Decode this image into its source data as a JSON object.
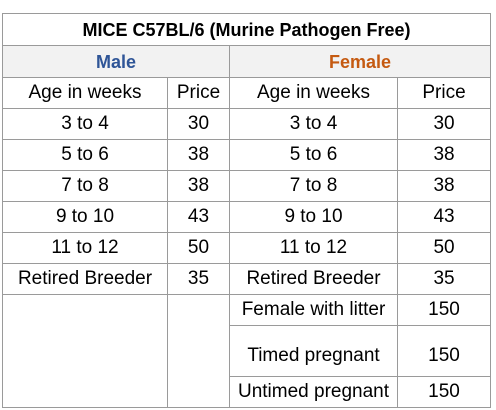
{
  "title": "MICE C57BL/6 (Murine Pathogen Free)",
  "male": {
    "label": "Male",
    "age_header": "Age in weeks",
    "price_header": "Price",
    "color": "#2f5597",
    "rows": [
      {
        "age": "3 to 4",
        "price": "30"
      },
      {
        "age": "5 to 6",
        "price": "38"
      },
      {
        "age": "7 to 8",
        "price": "38"
      },
      {
        "age": "9 to 10",
        "price": "43"
      },
      {
        "age": "11 to 12",
        "price": "50"
      },
      {
        "age": "Retired Breeder",
        "price": "35"
      }
    ]
  },
  "female": {
    "label": "Female",
    "age_header": "Age in weeks",
    "price_header": "Price",
    "color": "#c55a11",
    "rows": [
      {
        "age": "3 to 4",
        "price": "30"
      },
      {
        "age": "5 to 6",
        "price": "38"
      },
      {
        "age": "7 to 8",
        "price": "38"
      },
      {
        "age": "9 to 10",
        "price": "43"
      },
      {
        "age": "11 to 12",
        "price": "50"
      },
      {
        "age": "Retired Breeder",
        "price": "35"
      },
      {
        "age": "Female with litter",
        "price": "150"
      },
      {
        "age": "Timed pregnant",
        "price": "150"
      },
      {
        "age": "Untimed pregnant",
        "price": "150"
      }
    ]
  }
}
